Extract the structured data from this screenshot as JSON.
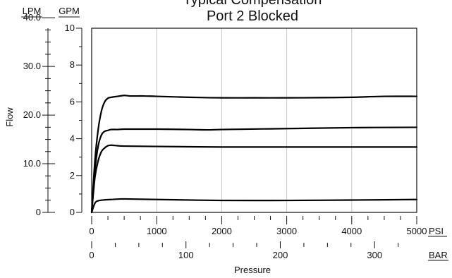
{
  "chart_data": {
    "type": "line",
    "title": [
      "Typical Compensation",
      "Port 2 Blocked"
    ],
    "xlabel": "Pressure",
    "ylabel": "Flow",
    "grid": true,
    "x_axis": {
      "unit": "PSI",
      "range": [
        0,
        5000
      ],
      "ticks": [
        0,
        1000,
        2000,
        3000,
        4000,
        5000
      ],
      "tick_labels": [
        "0",
        "1000",
        "2000",
        "3000",
        "4000",
        "5000"
      ]
    },
    "x_axis_secondary": {
      "unit": "BAR",
      "range": [
        0,
        344.7
      ],
      "ticks": [
        0,
        100,
        200,
        300
      ],
      "tick_labels": [
        "0",
        "100",
        "200",
        "300"
      ]
    },
    "y_axis": {
      "unit": "GPM",
      "range": [
        0,
        10
      ],
      "ticks": [
        0,
        2,
        4,
        6,
        8,
        10
      ],
      "tick_labels": [
        "0",
        "2",
        "4",
        "6",
        "8",
        "10"
      ]
    },
    "y_axis_secondary": {
      "unit": "LPM",
      "range": [
        0,
        37.85
      ],
      "ticks": [
        0,
        10,
        20,
        30,
        40
      ],
      "tick_labels": [
        "0",
        "10.0",
        "20.0",
        "30.0",
        "40.0"
      ]
    },
    "series": [
      {
        "x": [
          0,
          50,
          100,
          150,
          200,
          250,
          300,
          400,
          500,
          600,
          800,
          1000,
          1500,
          2000,
          2500,
          3000,
          3500,
          4000,
          4500,
          5000
        ],
        "values": [
          0,
          2.8,
          4.5,
          5.5,
          6.0,
          6.2,
          6.25,
          6.3,
          6.35,
          6.32,
          6.32,
          6.3,
          6.25,
          6.22,
          6.22,
          6.22,
          6.23,
          6.25,
          6.3,
          6.3
        ]
      },
      {
        "x": [
          0,
          50,
          100,
          150,
          200,
          250,
          300,
          400,
          500,
          700,
          1000,
          1500,
          1800,
          2000,
          3000,
          4000,
          5000
        ],
        "values": [
          0,
          2.3,
          3.6,
          4.2,
          4.4,
          4.45,
          4.5,
          4.5,
          4.52,
          4.52,
          4.52,
          4.5,
          4.48,
          4.5,
          4.55,
          4.6,
          4.62
        ]
      },
      {
        "x": [
          0,
          50,
          100,
          150,
          200,
          250,
          300,
          400,
          500,
          1000,
          2000,
          3000,
          4000,
          5000
        ],
        "values": [
          0,
          1.9,
          2.8,
          3.3,
          3.5,
          3.62,
          3.65,
          3.62,
          3.6,
          3.58,
          3.55,
          3.55,
          3.55,
          3.55
        ]
      },
      {
        "x": [
          0,
          50,
          100,
          200,
          300,
          400,
          500,
          1000,
          2000,
          3000,
          4000,
          5000
        ],
        "values": [
          0,
          0.5,
          0.63,
          0.68,
          0.7,
          0.72,
          0.73,
          0.7,
          0.65,
          0.65,
          0.67,
          0.7
        ]
      }
    ]
  }
}
